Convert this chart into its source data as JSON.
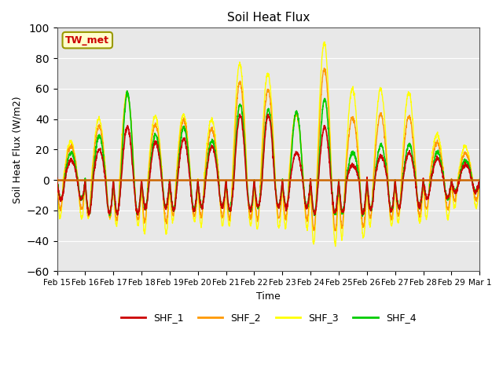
{
  "title": "Soil Heat Flux",
  "ylabel": "Soil Heat Flux (W/m2)",
  "xlabel": "Time",
  "annotation": "TW_met",
  "ylim": [
    -60,
    100
  ],
  "series_colors": {
    "SHF_1": "#cc0000",
    "SHF_2": "#ff9900",
    "SHF_3": "#ffff00",
    "SHF_4": "#00cc00"
  },
  "bg_color": "#e8e8e8",
  "hline_color": "#cc6600",
  "hline_y": 0,
  "x_tick_labels": [
    "Feb 15",
    "Feb 16",
    "Feb 17",
    "Feb 18",
    "Feb 19",
    "Feb 20",
    "Feb 21",
    "Feb 22",
    "Feb 23",
    "Feb 24",
    "Feb 25",
    "Feb 26",
    "Feb 27",
    "Feb 28",
    "Feb 29",
    "Mar 1"
  ],
  "n_days": 15,
  "pts_per_day": 144,
  "day_peak_amps_shf1": [
    13,
    20,
    35,
    25,
    27,
    22,
    42,
    43,
    18,
    35,
    10,
    16,
    18,
    14,
    10
  ],
  "day_peak_amps_shf3": [
    25,
    40,
    57,
    42,
    43,
    40,
    76,
    70,
    43,
    90,
    60,
    60,
    57,
    30,
    22
  ],
  "day_trough_shf3": [
    -25,
    -25,
    -30,
    -35,
    -27,
    -30,
    -30,
    -32,
    -32,
    -42,
    -38,
    -30,
    -28,
    -25,
    -18
  ],
  "day_peak_amps_shf4": [
    18,
    29,
    57,
    30,
    35,
    26,
    50,
    46,
    45,
    53,
    18,
    23,
    23,
    18,
    13
  ],
  "day_trough_shf1": [
    -13,
    -22,
    -22,
    -18,
    -20,
    -18,
    -20,
    -18,
    -18,
    -22,
    -22,
    -20,
    -18,
    -12,
    -8
  ],
  "day_trough_shf4": [
    -13,
    -22,
    -22,
    -18,
    -20,
    -18,
    -20,
    -18,
    -18,
    -22,
    -22,
    -20,
    -18,
    -12,
    -8
  ]
}
